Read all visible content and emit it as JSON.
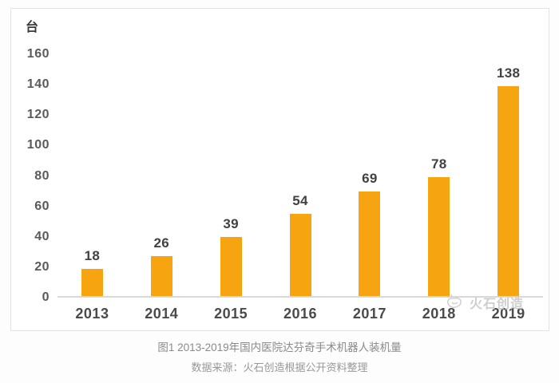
{
  "chart_data": {
    "type": "bar",
    "title": "图1 2013-2019年国内医院达芬奇手术机器人装机量",
    "unit_label": "台",
    "categories": [
      "2013",
      "2014",
      "2015",
      "2016",
      "2017",
      "2018",
      "2019"
    ],
    "values": [
      18,
      26,
      39,
      54,
      69,
      78,
      138
    ],
    "ylim": [
      0,
      160
    ],
    "yticks": [
      0,
      20,
      40,
      60,
      80,
      100,
      120,
      140,
      160
    ],
    "bar_color": "#f7a411",
    "grid": false,
    "legend": "none",
    "value_labels": "above-bars"
  },
  "caption": {
    "title": "图1 2013-2019年国内医院达芬奇手术机器人装机量",
    "source": "数据来源：火石创造根据公开资料整理"
  },
  "watermark": {
    "text": "火石创造",
    "icon": "huoshi-logo",
    "color": "#c9c9c9"
  },
  "colors": {
    "bar": "#f7a411",
    "axis_line": "#d9d9d9",
    "tick_text": "#5a5a5a",
    "value_text": "#414141",
    "card_border": "#e3e3e3",
    "caption_text": "#8a8a8a"
  }
}
